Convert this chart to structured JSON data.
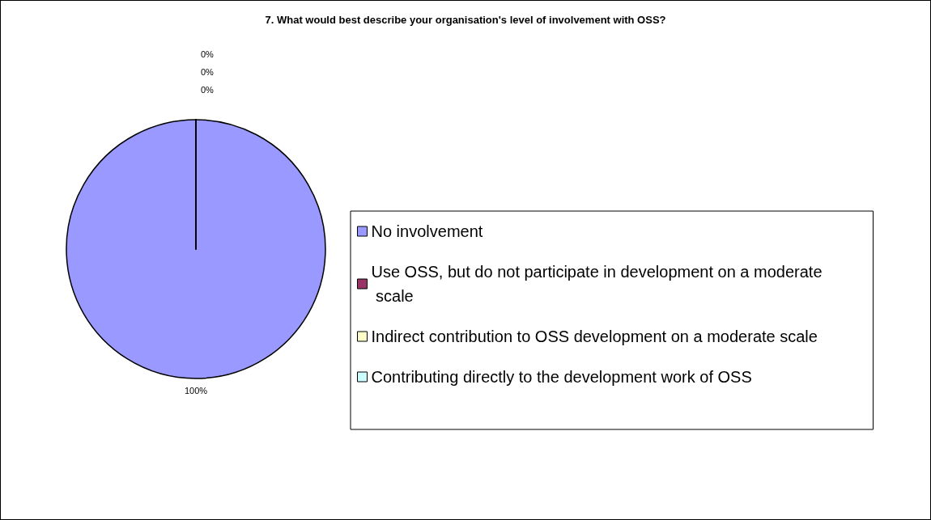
{
  "chart_data": {
    "type": "pie",
    "title": "7. What would best describe your organisation's level of involvement with OSS?",
    "categories": [
      "No involvement",
      "Use OSS, but do not participate in development on a moderate scale",
      "Indirect contribution to OSS development on a moderate scale",
      "Contributing directly to the development work of OSS"
    ],
    "values": [
      100,
      0,
      0,
      0
    ],
    "colors": [
      "#9999ff",
      "#993366",
      "#ffffcc",
      "#ccffff"
    ],
    "legend": "right",
    "value_labels": [
      "100%",
      "0%",
      "0%",
      "0%"
    ]
  }
}
